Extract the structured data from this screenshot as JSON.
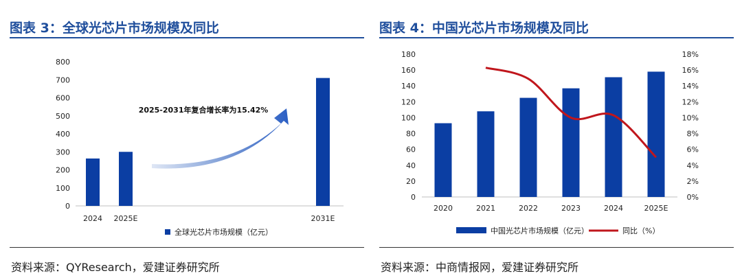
{
  "left": {
    "title": "图表 3：全球光芯片市场规模及同比",
    "source": "资料来源：QYResearch，爱建证券研究所",
    "annotation": "2025-2031年复合增长率为15.42%",
    "legend": "全球光芯片市场规模（亿元）"
  },
  "right": {
    "title": "图表 4：中国光芯片市场规模及同比",
    "source": "资料来源：中商情报网，爱建证券研究所",
    "legend_bar": "中国光芯片市场规模（亿元）",
    "legend_line": "同比（%）"
  },
  "colors": {
    "bar": "#0b3ea3",
    "line": "#c0161c",
    "title": "#1f4e9c"
  },
  "chart_data": [
    {
      "type": "bar",
      "categories": [
        "2024",
        "2025E",
        "2031E"
      ],
      "series": [
        {
          "name": "全球光芯片市场规模（亿元）",
          "values": [
            263,
            300,
            710
          ]
        }
      ],
      "ylim": [
        0,
        800
      ],
      "yticks": [
        0,
        100,
        200,
        300,
        400,
        500,
        600,
        700,
        800
      ],
      "annotation": "2025-2031年复合增长率为15.42%"
    },
    {
      "type": "bar",
      "categories": [
        "2020",
        "2021",
        "2022",
        "2023",
        "2024",
        "2025E"
      ],
      "series": [
        {
          "name": "中国光芯片市场规模（亿元）",
          "type": "bar",
          "axis": "left",
          "values": [
            93,
            108,
            125,
            137,
            151,
            158
          ]
        },
        {
          "name": "同比（%）",
          "type": "line",
          "axis": "right",
          "values": [
            null,
            16.3,
            14.9,
            10.0,
            10.3,
            5.0
          ]
        }
      ],
      "ylim": [
        0,
        180
      ],
      "yticks": [
        0,
        20,
        40,
        60,
        80,
        100,
        120,
        140,
        160,
        180
      ],
      "y2lim": [
        0,
        18
      ],
      "y2ticks": [
        "0%",
        "2%",
        "4%",
        "6%",
        "8%",
        "10%",
        "12%",
        "14%",
        "16%",
        "18%"
      ]
    }
  ]
}
